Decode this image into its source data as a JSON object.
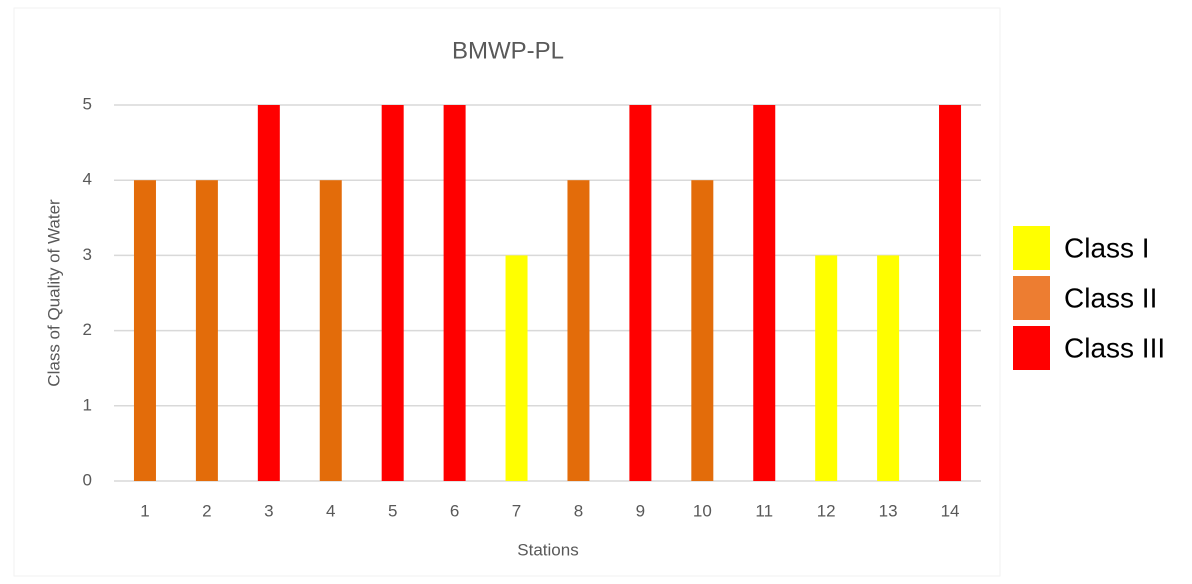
{
  "chart_data": {
    "type": "bar",
    "title": "BMWP-PL",
    "x_label": "Stations",
    "y_label": "Class of Quality of Water",
    "categories": [
      "1",
      "2",
      "3",
      "4",
      "5",
      "6",
      "7",
      "8",
      "9",
      "10",
      "11",
      "12",
      "13",
      "14"
    ],
    "values": [
      4,
      4,
      5,
      4,
      5,
      5,
      3,
      4,
      5,
      4,
      5,
      3,
      3,
      5
    ],
    "colors": [
      "#e36c0a",
      "#e36c0a",
      "#ff0000",
      "#e36c0a",
      "#ff0000",
      "#ff0000",
      "#ffff00",
      "#e36c0a",
      "#ff0000",
      "#e36c0a",
      "#ff0000",
      "#ffff00",
      "#ffff00",
      "#ff0000"
    ],
    "legend": [
      {
        "name": "Class I",
        "color": "#ffff00"
      },
      {
        "name": "Class II",
        "color": "#ed7d31"
      },
      {
        "name": "Class III",
        "color": "#ff0000"
      }
    ],
    "ylim": [
      0,
      5
    ],
    "yticks": [
      0,
      1,
      2,
      3,
      4,
      5
    ],
    "grid": true
  }
}
